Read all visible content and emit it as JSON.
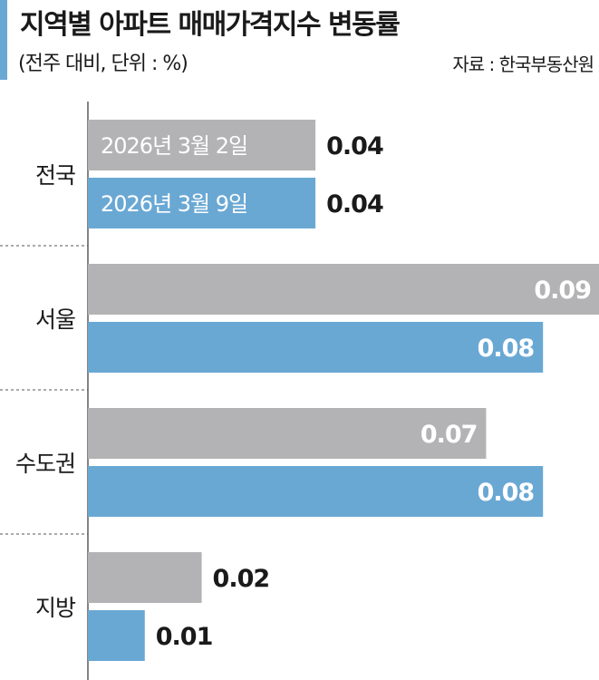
{
  "chart_data": {
    "type": "bar",
    "orientation": "horizontal",
    "title": "지역별 아파트 매매가격지수 변동률",
    "subtitle": "(전주 대비, 단위 : %)",
    "source": "자료 : 한국부동산원",
    "categories": [
      "전국",
      "서울",
      "수도권",
      "지방"
    ],
    "series": [
      {
        "name": "2026년 3월 2일",
        "values": [
          0.04,
          0.09,
          0.07,
          0.02
        ],
        "color": "#b3b3b5"
      },
      {
        "name": "2026년 3월 9일",
        "values": [
          0.04,
          0.08,
          0.08,
          0.01
        ],
        "color": "#6aa8d4"
      }
    ],
    "value_labels": [
      [
        "0.04",
        "0.09",
        "0.07",
        "0.02"
      ],
      [
        "0.04",
        "0.08",
        "0.08",
        "0.01"
      ]
    ],
    "xlim": [
      0,
      0.09
    ],
    "grid": false,
    "legend": "inside-first-group",
    "accent_color": "#6aa8d4"
  }
}
